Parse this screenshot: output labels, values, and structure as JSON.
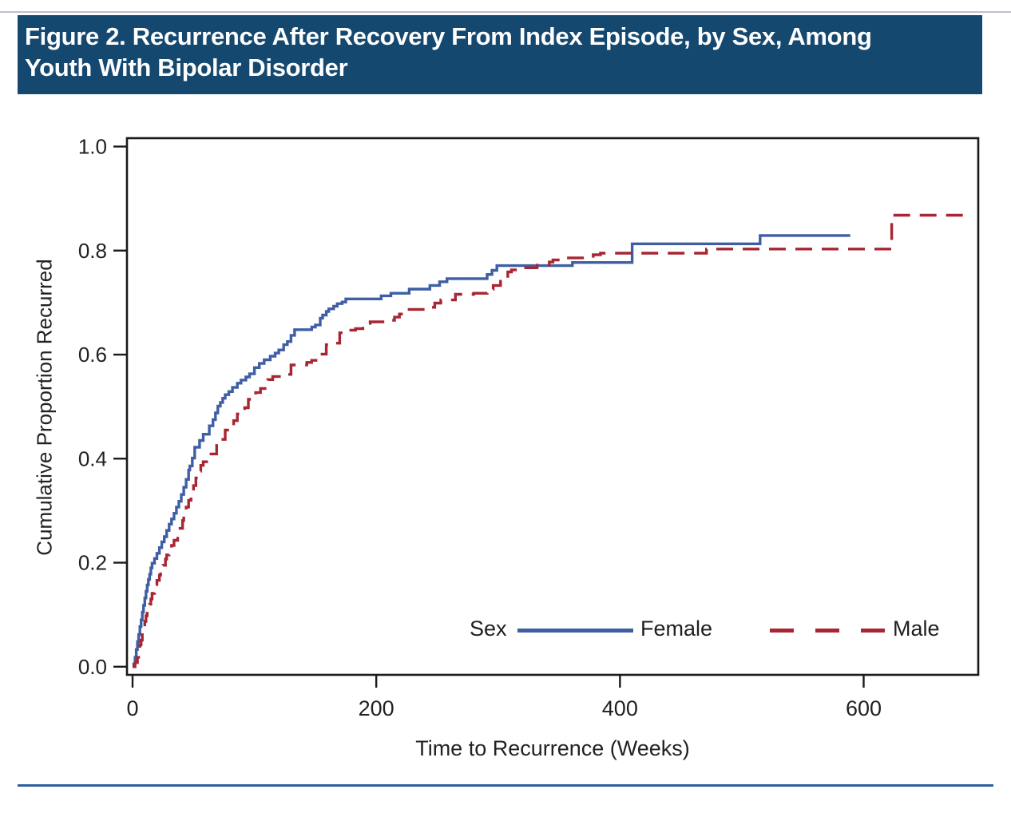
{
  "header": {
    "title_lines": [
      "Figure 2. Recurrence After Recovery From Index Episode, by Sex, Among",
      "Youth With Bipolar Disorder"
    ]
  },
  "colors": {
    "header_bar": "#15486f",
    "top_rule": "#b9c2cc",
    "bottom_rule": "#2d5f9f",
    "axis_frame": "#1a1a1a",
    "tick_text": "#231f20",
    "female_blue": "#3f5ea3",
    "male_red": "#a82633"
  },
  "chart_data": {
    "type": "line",
    "subtype": "step",
    "title": "Figure 2. Recurrence After Recovery From Index Episode, by Sex, Among Youth With Bipolar Disorder",
    "xlabel": "Time to Recurrence (Weeks)",
    "ylabel": "Cumulative Proportion Recurred",
    "xlim": [
      0,
      694
    ],
    "ylim": [
      0.0,
      1.0
    ],
    "grid": false,
    "x_ticks": [
      {
        "label": "0",
        "value": 0
      },
      {
        "label": "200",
        "value": 200
      },
      {
        "label": "400",
        "value": 400
      },
      {
        "label": "600",
        "value": 600
      }
    ],
    "y_ticks": [
      {
        "label": "1.0",
        "value": 1.0
      },
      {
        "label": "0.8",
        "value": 0.8
      },
      {
        "label": "0.6",
        "value": 0.6
      },
      {
        "label": "0.4",
        "value": 0.4
      },
      {
        "label": "0.2",
        "value": 0.2
      },
      {
        "label": "0.0",
        "value": 0.0
      }
    ],
    "legend": {
      "title": "Sex",
      "position": "inside-bottom-center",
      "entries": [
        {
          "label": "Female",
          "style": "solid",
          "color": "#3f5ea3"
        },
        {
          "label": "Male",
          "style": "dashed",
          "color": "#a82633"
        }
      ]
    },
    "series": [
      {
        "name": "Female",
        "color": "#3f5ea3",
        "style": "solid",
        "points": [
          [
            0,
            0
          ],
          [
            1,
            0.005
          ],
          [
            2,
            0.018
          ],
          [
            3,
            0.033
          ],
          [
            4,
            0.048
          ],
          [
            5,
            0.062
          ],
          [
            6,
            0.077
          ],
          [
            7,
            0.09
          ],
          [
            8,
            0.105
          ],
          [
            9,
            0.118
          ],
          [
            10,
            0.132
          ],
          [
            11,
            0.145
          ],
          [
            12,
            0.157
          ],
          [
            13,
            0.168
          ],
          [
            14,
            0.178
          ],
          [
            15,
            0.19
          ],
          [
            16,
            0.199
          ],
          [
            18,
            0.208
          ],
          [
            20,
            0.218
          ],
          [
            22,
            0.229
          ],
          [
            24,
            0.24
          ],
          [
            26,
            0.25
          ],
          [
            28,
            0.262
          ],
          [
            30,
            0.274
          ],
          [
            32,
            0.284
          ],
          [
            34,
            0.295
          ],
          [
            36,
            0.307
          ],
          [
            38,
            0.318
          ],
          [
            40,
            0.331
          ],
          [
            42,
            0.345
          ],
          [
            44,
            0.36
          ],
          [
            46,
            0.378
          ],
          [
            47,
            0.386
          ],
          [
            49,
            0.401
          ],
          [
            51,
            0.422
          ],
          [
            55,
            0.435
          ],
          [
            58,
            0.447
          ],
          [
            63,
            0.463
          ],
          [
            66,
            0.475
          ],
          [
            68,
            0.488
          ],
          [
            70,
            0.501
          ],
          [
            72,
            0.508
          ],
          [
            74,
            0.516
          ],
          [
            76,
            0.523
          ],
          [
            79,
            0.529
          ],
          [
            82,
            0.537
          ],
          [
            86,
            0.545
          ],
          [
            89,
            0.551
          ],
          [
            93,
            0.557
          ],
          [
            96,
            0.563
          ],
          [
            100,
            0.575
          ],
          [
            104,
            0.583
          ],
          [
            108,
            0.59
          ],
          [
            113,
            0.597
          ],
          [
            117,
            0.603
          ],
          [
            120,
            0.609
          ],
          [
            124,
            0.619
          ],
          [
            127,
            0.625
          ],
          [
            130,
            0.637
          ],
          [
            133,
            0.648
          ],
          [
            147,
            0.653
          ],
          [
            150,
            0.657
          ],
          [
            154,
            0.67
          ],
          [
            156,
            0.676
          ],
          [
            159,
            0.683
          ],
          [
            161,
            0.688
          ],
          [
            165,
            0.693
          ],
          [
            168,
            0.698
          ],
          [
            172,
            0.701
          ],
          [
            175,
            0.707
          ],
          [
            204,
            0.713
          ],
          [
            212,
            0.718
          ],
          [
            227,
            0.726
          ],
          [
            244,
            0.733
          ],
          [
            252,
            0.74
          ],
          [
            258,
            0.746
          ],
          [
            291,
            0.754
          ],
          [
            295,
            0.762
          ],
          [
            299,
            0.771
          ],
          [
            361,
            0.777
          ],
          [
            410,
            0.813
          ],
          [
            515,
            0.829
          ],
          [
            589,
            0.829
          ]
        ]
      },
      {
        "name": "Male",
        "color": "#a82633",
        "style": "dashed",
        "points": [
          [
            0,
            0
          ],
          [
            2,
            0.008
          ],
          [
            4,
            0.018
          ],
          [
            5,
            0.03
          ],
          [
            6,
            0.042
          ],
          [
            7,
            0.051
          ],
          [
            8,
            0.066
          ],
          [
            9,
            0.075
          ],
          [
            10,
            0.087
          ],
          [
            11,
            0.098
          ],
          [
            12,
            0.106
          ],
          [
            14,
            0.12
          ],
          [
            15,
            0.13
          ],
          [
            16,
            0.141
          ],
          [
            18,
            0.151
          ],
          [
            19,
            0.158
          ],
          [
            20,
            0.166
          ],
          [
            22,
            0.176
          ],
          [
            23,
            0.187
          ],
          [
            25,
            0.195
          ],
          [
            27,
            0.207
          ],
          [
            28,
            0.215
          ],
          [
            30,
            0.223
          ],
          [
            32,
            0.233
          ],
          [
            34,
            0.243
          ],
          [
            37,
            0.253
          ],
          [
            39,
            0.266
          ],
          [
            41,
            0.281
          ],
          [
            42,
            0.294
          ],
          [
            44,
            0.307
          ],
          [
            46,
            0.32
          ],
          [
            48,
            0.332
          ],
          [
            50,
            0.348
          ],
          [
            52,
            0.363
          ],
          [
            54,
            0.376
          ],
          [
            56,
            0.387
          ],
          [
            58,
            0.394
          ],
          [
            62,
            0.409
          ],
          [
            69,
            0.429
          ],
          [
            71,
            0.437
          ],
          [
            76,
            0.455
          ],
          [
            78,
            0.461
          ],
          [
            83,
            0.473
          ],
          [
            86,
            0.486
          ],
          [
            89,
            0.492
          ],
          [
            92,
            0.498
          ],
          [
            95,
            0.514
          ],
          [
            99,
            0.52
          ],
          [
            101,
            0.527
          ],
          [
            105,
            0.535
          ],
          [
            111,
            0.552
          ],
          [
            115,
            0.558
          ],
          [
            123,
            0.562
          ],
          [
            130,
            0.58
          ],
          [
            143,
            0.585
          ],
          [
            147,
            0.589
          ],
          [
            152,
            0.601
          ],
          [
            159,
            0.619
          ],
          [
            163,
            0.622
          ],
          [
            170,
            0.642
          ],
          [
            175,
            0.647
          ],
          [
            183,
            0.65
          ],
          [
            189,
            0.66
          ],
          [
            195,
            0.663
          ],
          [
            208,
            0.666
          ],
          [
            215,
            0.672
          ],
          [
            219,
            0.678
          ],
          [
            225,
            0.687
          ],
          [
            241,
            0.691
          ],
          [
            248,
            0.699
          ],
          [
            253,
            0.705
          ],
          [
            265,
            0.716
          ],
          [
            280,
            0.718
          ],
          [
            291,
            0.726
          ],
          [
            296,
            0.733
          ],
          [
            302,
            0.741
          ],
          [
            308,
            0.759
          ],
          [
            311,
            0.763
          ],
          [
            317,
            0.767
          ],
          [
            332,
            0.772
          ],
          [
            342,
            0.778
          ],
          [
            345,
            0.782
          ],
          [
            355,
            0.786
          ],
          [
            378,
            0.792
          ],
          [
            384,
            0.795
          ],
          [
            471,
            0.803
          ],
          [
            623,
            0.868
          ],
          [
            688,
            0.868
          ]
        ]
      }
    ]
  }
}
